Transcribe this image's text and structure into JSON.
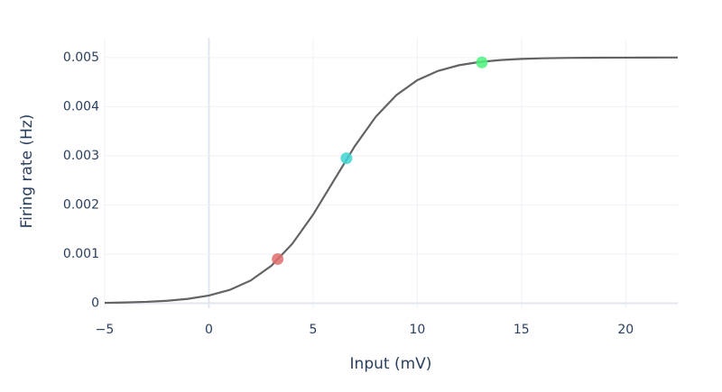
{
  "chart_data": {
    "type": "line",
    "x_label": "Input (mV)",
    "y_label": "Firing rate (Hz)",
    "x": [
      -5,
      -4,
      -3,
      -2,
      -1,
      0,
      1,
      2,
      3,
      4,
      5,
      6,
      7,
      8,
      9,
      10,
      11,
      12,
      13,
      14,
      15,
      16,
      17,
      18,
      19,
      20,
      21,
      22,
      22.5
    ],
    "values": [
      9.3e-06,
      1.64e-05,
      2.91e-05,
      5.12e-05,
      8.99e-05,
      0.000157,
      0.000272,
      0.000462,
      0.000763,
      0.001209,
      0.001804,
      0.0025,
      0.003196,
      0.003791,
      0.004237,
      0.004538,
      0.004728,
      0.004843,
      0.00491,
      0.004949,
      0.004971,
      0.004984,
      0.004991,
      0.004995,
      0.004997,
      0.004998,
      0.004999,
      0.005,
      0.005
    ],
    "color": "#636363",
    "points": {
      "x": [
        3.3,
        6.6,
        13.1
      ],
      "values": [
        0.0009,
        0.00295,
        0.0049
      ],
      "colors": [
        "#e06c6c",
        "#3fd3d3",
        "#4df27c"
      ]
    },
    "xlim": [
      -5,
      22.5
    ],
    "xticks": [
      {
        "value": -5,
        "label": "−5"
      },
      0,
      5,
      10,
      15,
      20
    ],
    "ylim": [
      -0.0001,
      0.0054
    ],
    "yticks": [
      0,
      0.001,
      0.002,
      0.003,
      0.004,
      0.005
    ],
    "grid": true
  }
}
